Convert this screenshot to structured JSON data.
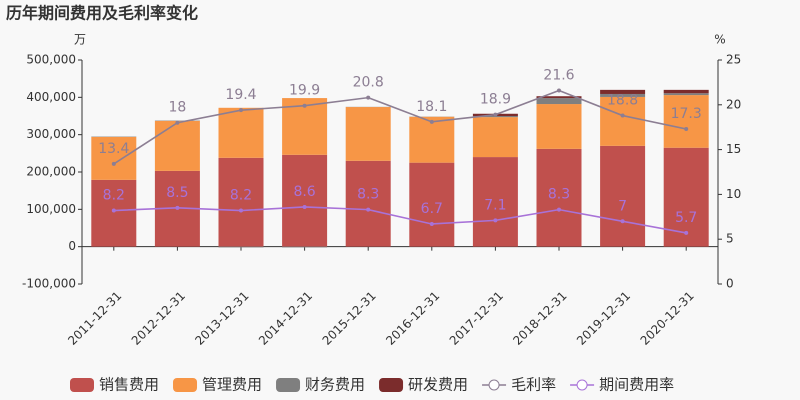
{
  "chart_data": {
    "type": "bar-line",
    "title": "历年期间费用及毛利率变化",
    "y_unit": "万",
    "y2_unit": "%",
    "categories": [
      "2011-12-31",
      "2012-12-31",
      "2013-12-31",
      "2014-12-31",
      "2015-12-31",
      "2016-12-31",
      "2017-12-31",
      "2018-12-31",
      "2019-12-31",
      "2020-12-31"
    ],
    "series": [
      {
        "name": "销售费用",
        "color": "#c0504d",
        "kind": "bar",
        "values": [
          179000,
          203000,
          238000,
          246000,
          230000,
          225000,
          240000,
          262000,
          270000,
          265000
        ]
      },
      {
        "name": "管理费用",
        "color": "#f79646",
        "kind": "bar",
        "values": [
          115000,
          134000,
          134000,
          152000,
          144000,
          123000,
          107000,
          120000,
          131000,
          141000
        ]
      },
      {
        "name": "财务费用",
        "color": "#7f7f7f",
        "kind": "bar",
        "values": [
          1000,
          1000,
          -2000,
          -2000,
          500,
          500,
          3000,
          16000,
          8000,
          5000
        ]
      },
      {
        "name": "研发费用",
        "color": "#7b2c2c",
        "kind": "bar",
        "values": [
          0,
          0,
          0,
          0,
          0,
          0,
          6000,
          5000,
          11000,
          9000
        ]
      },
      {
        "name": "毛利率",
        "color": "#8c7e93",
        "kind": "line",
        "axis": "y2",
        "values": [
          13.4,
          18,
          19.4,
          19.9,
          20.8,
          18.1,
          18.9,
          21.6,
          18.8,
          17.3
        ]
      },
      {
        "name": "期间费用率",
        "color": "#a872d8",
        "kind": "line",
        "axis": "y2",
        "values": [
          8.2,
          8.5,
          8.2,
          8.6,
          8.3,
          6.7,
          7.1,
          8.3,
          7,
          5.7
        ]
      }
    ],
    "ylim": [
      -100000,
      500000
    ],
    "yticks": [
      {
        "value": -100000,
        "label": "-100,000"
      },
      0,
      {
        "value": 100000,
        "label": "100,000"
      },
      {
        "value": 200000,
        "label": "200,000"
      },
      {
        "value": 300000,
        "label": "300,000"
      },
      {
        "value": 400000,
        "label": "400,000"
      },
      {
        "value": 500000,
        "label": "500,000"
      }
    ],
    "y2lim": [
      0,
      25
    ],
    "y2ticks": [
      0,
      5,
      10,
      15,
      20,
      25
    ]
  }
}
